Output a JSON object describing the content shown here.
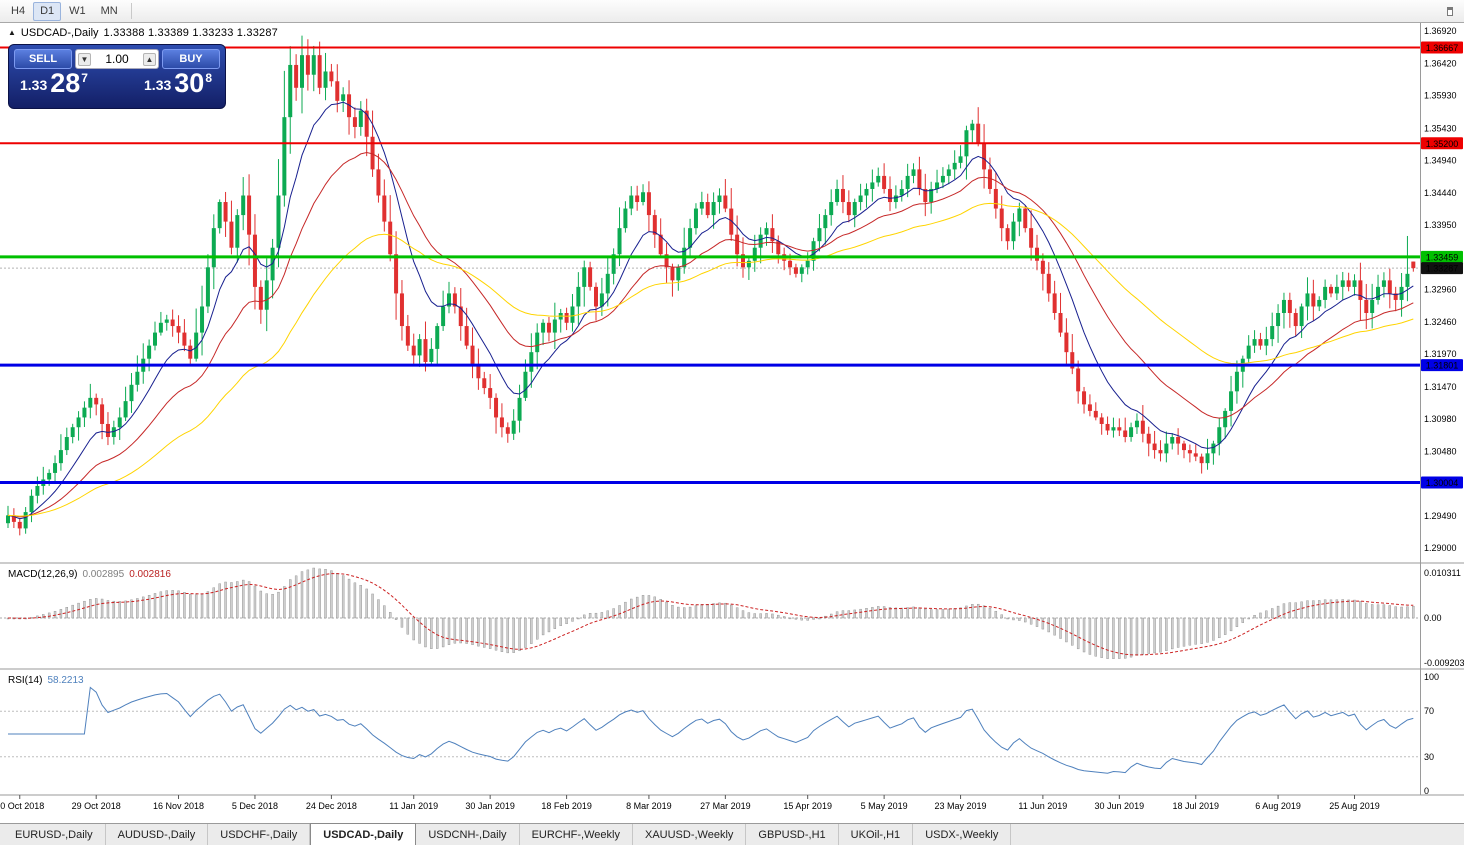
{
  "toolbar": {
    "timeframes": [
      {
        "label": "H4",
        "active": false
      },
      {
        "label": "D1",
        "active": true
      },
      {
        "label": "W1",
        "active": false
      },
      {
        "label": "MN",
        "active": false
      }
    ]
  },
  "chart_header": {
    "toggle_marker": "▲",
    "symbol_period": "USDCAD-,Daily",
    "ohlc_text": "1.33388 1.33389 1.33233 1.33287"
  },
  "trade_panel": {
    "sell_label": "SELL",
    "buy_label": "BUY",
    "volume": "1.00",
    "spin_down": "▼",
    "spin_up": "▲",
    "sell_price_small": "1.33",
    "sell_price_big": "28",
    "sell_price_sup": "7",
    "buy_price_small": "1.33",
    "buy_price_big": "30",
    "buy_price_sup": "8"
  },
  "indicators": {
    "macd": {
      "label": "MACD(12,26,9)",
      "value_main": "0.002895",
      "value_signal": "0.002816",
      "axis_max": "0.010311",
      "axis_zero": "0.00",
      "axis_min": "-0.009203",
      "histogram_color": "#cfcfcf",
      "histogram_stroke": "#8a8a8a",
      "signal_color": "#cc2222"
    },
    "rsi": {
      "label": "RSI(14)",
      "value": "58.2213",
      "axis_labels": [
        "100",
        "70",
        "30",
        "0"
      ],
      "levels": [
        70,
        30
      ],
      "line_color": "#4f81bd",
      "level_color": "#bdbdbd"
    }
  },
  "tabs": {
    "active_index": 3,
    "items": [
      "EURUSD-,Daily",
      "AUDUSD-,Daily",
      "USDCHF-,Daily",
      "USDCAD-,Daily",
      "USDCNH-,Daily",
      "EURCHF-,Weekly",
      "XAUUSD-,Weekly",
      "GBPUSD-,H1",
      "UKOil-,H1",
      "USDX-,Weekly"
    ]
  },
  "chart_data": {
    "type": "candlestick",
    "symbol": "USDCAD-",
    "timeframe": "Daily",
    "current_bar": {
      "open": 1.33388,
      "high": 1.33389,
      "low": 1.33233,
      "close": 1.33287
    },
    "up_color": "#0caa52",
    "down_color": "#e03030",
    "y_axis_ticks": [
      "1.36920",
      "1.36420",
      "1.35930",
      "1.35430",
      "1.34940",
      "1.34440",
      "1.33950",
      "1.33450",
      "1.32960",
      "1.32460",
      "1.31970",
      "1.31470",
      "1.30980",
      "1.30480",
      "1.29990",
      "1.29490",
      "1.29000"
    ],
    "y_axis_range": {
      "top": 1.3692,
      "bottom": 1.29
    },
    "x_ticks": [
      {
        "label": "10 Oct 2018",
        "i": 2
      },
      {
        "label": "29 Oct 2018",
        "i": 15
      },
      {
        "label": "16 Nov 2018",
        "i": 29
      },
      {
        "label": "5 Dec 2018",
        "i": 42
      },
      {
        "label": "24 Dec 2018",
        "i": 55
      },
      {
        "label": "11 Jan 2019",
        "i": 69
      },
      {
        "label": "30 Jan 2019",
        "i": 82
      },
      {
        "label": "18 Feb 2019",
        "i": 95
      },
      {
        "label": "8 Mar 2019",
        "i": 109
      },
      {
        "label": "27 Mar 2019",
        "i": 122
      },
      {
        "label": "15 Apr 2019",
        "i": 136
      },
      {
        "label": "5 May 2019",
        "i": 149
      },
      {
        "label": "23 May 2019",
        "i": 162
      },
      {
        "label": "11 Jun 2019",
        "i": 176
      },
      {
        "label": "30 Jun 2019",
        "i": 189
      },
      {
        "label": "18 Jul 2019",
        "i": 202
      },
      {
        "label": "6 Aug 2019",
        "i": 216
      },
      {
        "label": "25 Aug 2019",
        "i": 229
      }
    ],
    "closes": [
      1.295,
      1.294,
      1.293,
      1.2955,
      1.298,
      1.2995,
      1.3005,
      1.3015,
      1.303,
      1.305,
      1.307,
      1.3085,
      1.31,
      1.3115,
      1.313,
      1.312,
      1.309,
      1.307,
      1.3085,
      1.31,
      1.3125,
      1.315,
      1.317,
      1.319,
      1.321,
      1.323,
      1.3245,
      1.325,
      1.324,
      1.323,
      1.321,
      1.319,
      1.323,
      1.327,
      1.333,
      1.339,
      1.343,
      1.34,
      1.336,
      1.341,
      1.344,
      1.338,
      1.33,
      1.3265,
      1.331,
      1.336,
      1.344,
      1.356,
      1.364,
      1.3605,
      1.3655,
      1.3625,
      1.3655,
      1.3605,
      1.363,
      1.3615,
      1.3585,
      1.3595,
      1.356,
      1.3545,
      1.357,
      1.353,
      1.348,
      1.344,
      1.34,
      1.335,
      1.329,
      1.324,
      1.321,
      1.3195,
      1.322,
      1.3185,
      1.3205,
      1.324,
      1.327,
      1.329,
      1.327,
      1.324,
      1.321,
      1.318,
      1.316,
      1.3145,
      1.313,
      1.31,
      1.3085,
      1.3075,
      1.3095,
      1.313,
      1.317,
      1.32,
      1.323,
      1.3245,
      1.323,
      1.325,
      1.326,
      1.3245,
      1.327,
      1.33,
      1.333,
      1.33,
      1.327,
      1.329,
      1.332,
      1.335,
      1.339,
      1.342,
      1.344,
      1.343,
      1.3445,
      1.341,
      1.338,
      1.335,
      1.333,
      1.331,
      1.333,
      1.336,
      1.339,
      1.342,
      1.343,
      1.341,
      1.343,
      1.344,
      1.342,
      1.338,
      1.335,
      1.333,
      1.334,
      1.336,
      1.338,
      1.339,
      1.337,
      1.335,
      1.334,
      1.333,
      1.332,
      1.333,
      1.334,
      1.337,
      1.339,
      1.341,
      1.343,
      1.345,
      1.343,
      1.341,
      1.343,
      1.344,
      1.345,
      1.346,
      1.347,
      1.345,
      1.343,
      1.344,
      1.345,
      1.347,
      1.348,
      1.345,
      1.343,
      1.345,
      1.346,
      1.347,
      1.348,
      1.349,
      1.35,
      1.354,
      1.355,
      1.352,
      1.348,
      1.345,
      1.342,
      1.339,
      1.337,
      1.34,
      1.342,
      1.339,
      1.336,
      1.334,
      1.332,
      1.329,
      1.326,
      1.323,
      1.32,
      1.3175,
      1.314,
      1.312,
      1.311,
      1.31,
      1.309,
      1.308,
      1.3085,
      1.308,
      1.307,
      1.3085,
      1.3095,
      1.3075,
      1.306,
      1.305,
      1.3045,
      1.306,
      1.307,
      1.306,
      1.305,
      1.3045,
      1.304,
      1.303,
      1.3045,
      1.306,
      1.3085,
      1.311,
      1.314,
      1.317,
      1.319,
      1.321,
      1.322,
      1.321,
      1.322,
      1.324,
      1.326,
      1.328,
      1.326,
      1.324,
      1.327,
      1.329,
      1.327,
      1.328,
      1.33,
      1.329,
      1.33,
      1.331,
      1.33,
      1.331,
      1.328,
      1.326,
      1.328,
      1.33,
      1.331,
      1.329,
      1.328,
      1.33,
      1.332,
      1.33287
    ],
    "wick_overrides": {
      "48": 1.3668,
      "50": 1.3685,
      "52": 1.3669,
      "238": 1.3378
    },
    "horizontal_lines": [
      {
        "price": 1.36667,
        "label": "1.36667",
        "color": "#ee0000",
        "width": 2
      },
      {
        "price": 1.352,
        "label": "1.35200",
        "color": "#ee0000",
        "width": 2
      },
      {
        "price": 1.33459,
        "label": "1.33459",
        "color": "#00c000",
        "width": 3
      },
      {
        "price": 1.31801,
        "label": "1.31801",
        "color": "#0000e6",
        "width": 3
      },
      {
        "price": 1.30004,
        "label": "1.30004",
        "color": "#0000e6",
        "width": 3
      }
    ],
    "current_price": {
      "value": 1.33287,
      "label": "1.33287",
      "badge_color": "#111111"
    },
    "moving_averages": [
      {
        "period": 10,
        "color": "#18208f"
      },
      {
        "period": 24,
        "color": "#c62828"
      },
      {
        "period": 52,
        "color": "#ffd400"
      }
    ],
    "macd_params": {
      "fast": 12,
      "slow": 26,
      "signal": 9
    },
    "rsi_period": 14
  }
}
